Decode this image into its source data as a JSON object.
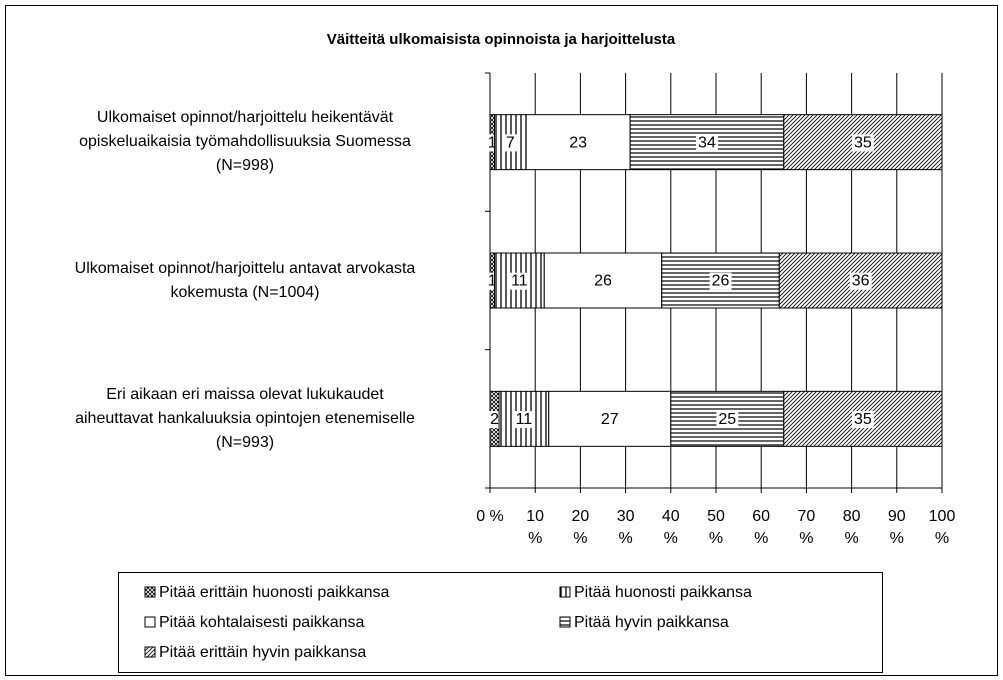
{
  "chart_data": {
    "type": "stacked-barh",
    "title": "Väitteitä ulkomaisista opinnoista ja harjoittelusta",
    "categories": [
      "Ulkomaiset opinnot/harjoittelu heikentävät\nopiskeluaikaisia työmahdollisuuksia Suomessa\n(N=998)",
      "Ulkomaiset opinnot/harjoittelu antavat arvokasta\nkokemusta (N=1004)",
      "Eri aikaan eri maissa olevat lukukaudet\naiheuttavat hankaluuksia opintojen etenemiselle\n(N=993)"
    ],
    "series": [
      {
        "name": "Pitää erittäin huonosti paikkansa",
        "color": "#000000",
        "pattern": "crosshatch",
        "values": [
          1,
          1,
          2
        ]
      },
      {
        "name": "Pitää huonosti paikkansa",
        "color": "#000000",
        "pattern": "vertical",
        "values": [
          7,
          11,
          11
        ]
      },
      {
        "name": "Pitää kohtalaisesti paikkansa",
        "color": "#000000",
        "pattern": "none",
        "values": [
          23,
          26,
          27
        ]
      },
      {
        "name": "Pitää hyvin paikkansa",
        "color": "#000000",
        "pattern": "horizontal",
        "values": [
          34,
          26,
          25
        ]
      },
      {
        "name": "Pitää erittäin hyvin paikkansa",
        "color": "#000000",
        "pattern": "diagonal",
        "values": [
          35,
          36,
          35
        ]
      }
    ],
    "xlim": [
      0,
      100
    ],
    "xticks": [
      {
        "value": 0,
        "label": "0 %"
      },
      {
        "value": 10,
        "label": "10 %"
      },
      {
        "value": 20,
        "label": "20 %"
      },
      {
        "value": 30,
        "label": "30 %"
      },
      {
        "value": 40,
        "label": "40 %"
      },
      {
        "value": 50,
        "label": "50 %"
      },
      {
        "value": 60,
        "label": "60 %"
      },
      {
        "value": 70,
        "label": "70 %"
      },
      {
        "value": 80,
        "label": "80 %"
      },
      {
        "value": 90,
        "label": "90 %"
      },
      {
        "value": 100,
        "label": "100 %"
      }
    ],
    "grid": true,
    "legend": "bottom"
  }
}
